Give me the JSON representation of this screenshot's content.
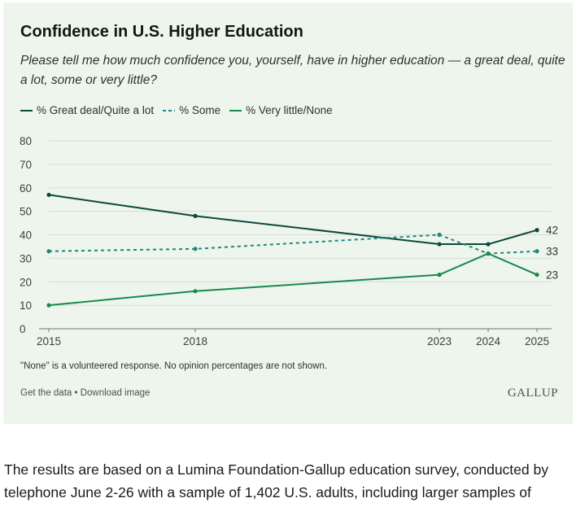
{
  "colors": {
    "great_deal": "#0b4a3b",
    "some": "#1a8a80",
    "very_little": "#178a4c"
  },
  "chart_data": {
    "type": "line",
    "title": "Confidence in U.S. Higher Education",
    "subtitle": "Please tell me how much confidence you, yourself, have in higher education — a great deal, quite a lot, some or very little?",
    "x": [
      2015,
      2018,
      2023,
      2024,
      2025
    ],
    "x_tick_labels": [
      "2015",
      "2018",
      "2023",
      "2024",
      "2025"
    ],
    "ylim": [
      0,
      80
    ],
    "y_ticks": [
      0,
      10,
      20,
      30,
      40,
      50,
      60,
      70,
      80
    ],
    "grid": true,
    "series": [
      {
        "name": "% Great deal/Quite a lot",
        "style": "solid",
        "color_key": "great_deal",
        "values": [
          57,
          48,
          36,
          36,
          42
        ],
        "end_label": "42"
      },
      {
        "name": "% Some",
        "style": "dashed",
        "color_key": "some",
        "values": [
          33,
          34,
          40,
          32,
          33
        ],
        "end_label": "33"
      },
      {
        "name": "% Very little/None",
        "style": "solid",
        "color_key": "very_little",
        "values": [
          10,
          16,
          23,
          32,
          23
        ],
        "end_label": "23"
      }
    ],
    "note": "\"None\" is a volunteered response. No opinion percentages are not shown."
  },
  "footer": {
    "get_data": "Get the data",
    "separator": " • ",
    "download": "Download image",
    "brand": "GALLUP"
  },
  "article": {
    "paragraph": "The results are based on a Lumina Foundation-Gallup education survey, conducted by telephone June 2-26 with a sample of 1,402 U.S. adults, including larger samples of"
  }
}
